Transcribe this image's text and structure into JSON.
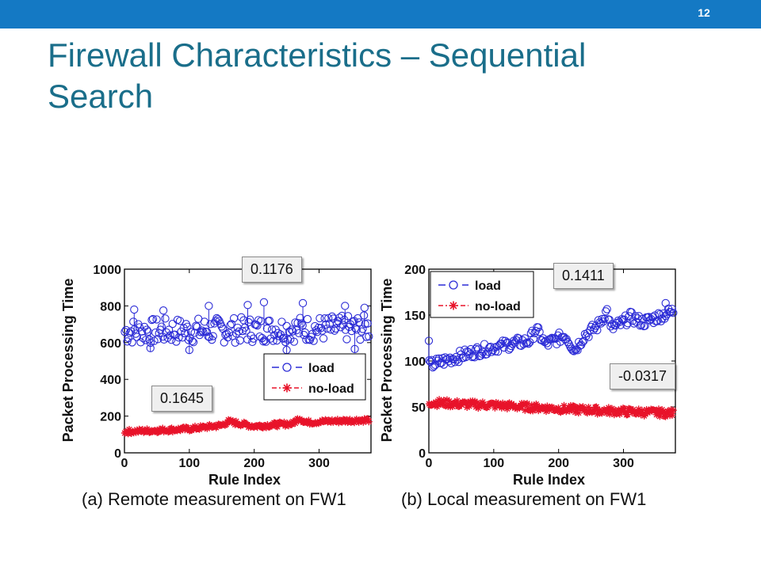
{
  "slide": {
    "number": "12",
    "title": "Firewall Characteristics – Sequential Search",
    "accent_color": "#1479c4",
    "title_color": "#1a6e8a"
  },
  "chart_data": [
    {
      "type": "scatter",
      "caption": "(a) Remote measurement on FW1",
      "xlabel": "Rule Index",
      "ylabel": "Packet Processing Time",
      "xlim": [
        0,
        380
      ],
      "ylim": [
        0,
        1000
      ],
      "xticks": [
        0,
        100,
        200,
        300
      ],
      "yticks": [
        0,
        200,
        400,
        600,
        800,
        1000
      ],
      "legend_position": "right",
      "series": [
        {
          "name": "load",
          "style": "circle",
          "color": "#2b2bd6",
          "trend": {
            "x": [
              0,
              380
            ],
            "y": [
              660,
              680
            ]
          },
          "band": 70,
          "spikes": [
            [
              15,
              780
            ],
            [
              60,
              775
            ],
            [
              130,
              800
            ],
            [
              190,
              805
            ],
            [
              215,
              820
            ],
            [
              275,
              815
            ],
            [
              340,
              800
            ],
            [
              370,
              790
            ],
            [
              40,
              570
            ],
            [
              100,
              560
            ],
            [
              250,
              560
            ],
            [
              355,
              565
            ]
          ]
        },
        {
          "name": "no-load",
          "style": "star",
          "color": "#e8132a",
          "trend": {
            "x": [
              0,
              100,
              150,
              160,
              200,
              260,
              270,
              280,
              300,
              380
            ],
            "y": [
              115,
              130,
              150,
              170,
              145,
              160,
              190,
              165,
              170,
              180
            ]
          },
          "band": 12
        }
      ],
      "annotations": [
        {
          "series": "load",
          "label": "0.1176"
        },
        {
          "series": "no-load",
          "label": "0.1645"
        }
      ]
    },
    {
      "type": "scatter",
      "caption": "(b) Local measurement on FW1",
      "xlabel": "Rule Index",
      "ylabel": "Packet Processing Time",
      "xlim": [
        0,
        380
      ],
      "ylim": [
        0,
        200
      ],
      "xticks": [
        0,
        100,
        200,
        300
      ],
      "yticks": [
        0,
        50,
        100,
        150,
        200
      ],
      "legend_position": "top-left",
      "series": [
        {
          "name": "load",
          "style": "circle",
          "color": "#2b2bd6",
          "trend": {
            "x": [
              0,
              60,
              100,
              155,
              165,
              180,
              210,
              225,
              240,
              260,
              275,
              280,
              300,
              310,
              330,
              380
            ],
            "y": [
              95,
              108,
              115,
              122,
              135,
              118,
              128,
              112,
              128,
              138,
              155,
              135,
              142,
              148,
              142,
              155
            ]
          },
          "band": 6,
          "spikes": [
            [
              0,
              122
            ],
            [
              365,
              163
            ]
          ]
        },
        {
          "name": "no-load",
          "style": "star",
          "color": "#e8132a",
          "trend": {
            "x": [
              0,
              50,
              100,
              200,
              300,
              380
            ],
            "y": [
              55,
              53,
              52,
              48,
              45,
              43
            ]
          },
          "band": 4
        }
      ],
      "annotations": [
        {
          "series": "load",
          "label": "0.1411"
        },
        {
          "series": "no-load",
          "label": "-0.0317"
        }
      ]
    }
  ]
}
